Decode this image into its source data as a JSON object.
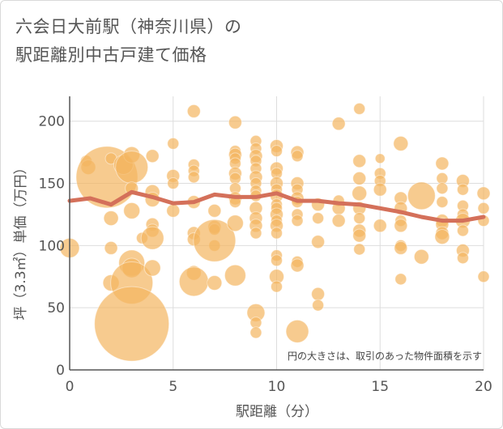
{
  "chart_data": {
    "type": "scatter",
    "title_lines": [
      "六会日大前駅（神奈川県）の",
      "駅距離別中古戸建て価格"
    ],
    "xlabel": "駅距離（分）",
    "ylabel": "坪（3.3㎡）単価（万円）",
    "xlim": [
      0,
      20
    ],
    "ylim": [
      0,
      220
    ],
    "x_ticks": [
      0,
      5,
      10,
      15,
      20
    ],
    "y_ticks": [
      0,
      50,
      100,
      150,
      200
    ],
    "grid": true,
    "annotation": "円の大きさは、取引のあった物件面積を示す",
    "colors": {
      "bubble": "#f3b55f",
      "trend": "#d4705a",
      "grid": "#dddddd",
      "axis": "#555555"
    },
    "bubbles": [
      [
        0,
        98,
        12
      ],
      [
        0.8,
        168,
        7
      ],
      [
        0.9,
        163,
        9
      ],
      [
        1.8,
        155,
        38
      ],
      [
        2,
        170,
        7
      ],
      [
        2,
        98,
        8
      ],
      [
        2,
        122,
        9
      ],
      [
        2,
        70,
        10
      ],
      [
        2.6,
        165,
        12
      ],
      [
        3,
        173,
        10
      ],
      [
        3,
        163,
        20
      ],
      [
        3,
        146,
        8
      ],
      [
        3,
        128,
        10
      ],
      [
        3,
        86,
        16
      ],
      [
        3,
        82,
        12
      ],
      [
        3,
        70,
        26
      ],
      [
        3,
        37,
        46
      ],
      [
        3.5,
        106,
        7
      ],
      [
        4,
        172,
        8
      ],
      [
        4,
        143,
        9
      ],
      [
        4,
        137,
        9
      ],
      [
        4,
        117,
        8
      ],
      [
        4,
        112,
        8
      ],
      [
        4,
        106,
        14
      ],
      [
        4,
        82,
        10
      ],
      [
        5,
        182,
        7
      ],
      [
        5,
        156,
        8
      ],
      [
        5,
        150,
        7
      ],
      [
        5,
        128,
        8
      ],
      [
        6,
        208,
        8
      ],
      [
        6,
        165,
        7
      ],
      [
        6,
        160,
        7
      ],
      [
        6,
        155,
        7
      ],
      [
        6,
        135,
        8
      ],
      [
        6,
        110,
        8
      ],
      [
        6,
        105,
        8
      ],
      [
        6,
        78,
        9
      ],
      [
        6,
        71,
        18
      ],
      [
        7,
        128,
        8
      ],
      [
        7,
        115,
        8
      ],
      [
        7,
        113,
        7
      ],
      [
        7,
        100,
        7
      ],
      [
        7,
        70,
        9
      ],
      [
        7,
        104,
        26
      ],
      [
        8,
        199,
        8
      ],
      [
        8,
        176,
        7
      ],
      [
        8,
        173,
        8
      ],
      [
        8,
        170,
        7
      ],
      [
        8,
        166,
        7
      ],
      [
        8,
        158,
        8
      ],
      [
        8,
        154,
        7
      ],
      [
        8,
        146,
        7
      ],
      [
        8,
        138,
        8
      ],
      [
        8,
        135,
        7
      ],
      [
        8,
        118,
        10
      ],
      [
        8,
        76,
        13
      ],
      [
        9,
        184,
        7
      ],
      [
        9,
        178,
        7
      ],
      [
        9,
        172,
        8
      ],
      [
        9,
        168,
        7
      ],
      [
        9,
        162,
        7
      ],
      [
        9,
        155,
        8
      ],
      [
        9,
        150,
        7
      ],
      [
        9,
        144,
        7
      ],
      [
        9,
        140,
        7
      ],
      [
        9,
        130,
        8
      ],
      [
        9,
        122,
        8
      ],
      [
        9,
        116,
        8
      ],
      [
        9,
        110,
        7
      ],
      [
        9,
        46,
        11
      ],
      [
        9,
        38,
        7
      ],
      [
        9,
        30,
        7
      ],
      [
        10,
        180,
        8
      ],
      [
        10,
        176,
        7
      ],
      [
        10,
        162,
        8
      ],
      [
        10,
        158,
        7
      ],
      [
        10,
        150,
        8
      ],
      [
        10,
        145,
        7
      ],
      [
        10,
        140,
        8
      ],
      [
        10,
        133,
        7
      ],
      [
        10,
        130,
        7
      ],
      [
        10,
        125,
        8
      ],
      [
        10,
        120,
        7
      ],
      [
        10,
        116,
        8
      ],
      [
        10,
        110,
        7
      ],
      [
        10,
        92,
        7
      ],
      [
        10,
        88,
        7
      ],
      [
        10,
        75,
        9
      ],
      [
        10,
        67,
        7
      ],
      [
        11,
        175,
        8
      ],
      [
        11,
        172,
        7
      ],
      [
        11,
        150,
        8
      ],
      [
        11,
        145,
        7
      ],
      [
        11,
        138,
        8
      ],
      [
        11,
        135,
        7
      ],
      [
        11,
        125,
        7
      ],
      [
        11,
        120,
        7
      ],
      [
        11,
        87,
        7
      ],
      [
        11,
        84,
        8
      ],
      [
        11,
        31,
        14
      ],
      [
        12,
        133,
        8
      ],
      [
        12,
        122,
        7
      ],
      [
        12,
        103,
        8
      ],
      [
        12,
        61,
        8
      ],
      [
        12,
        52,
        7
      ],
      [
        13,
        198,
        8
      ],
      [
        13,
        136,
        7
      ],
      [
        13,
        130,
        8
      ],
      [
        13,
        120,
        8
      ],
      [
        14,
        210,
        7
      ],
      [
        14,
        168,
        8
      ],
      [
        14,
        154,
        8
      ],
      [
        14,
        142,
        9
      ],
      [
        14,
        130,
        8
      ],
      [
        14,
        122,
        7
      ],
      [
        14,
        112,
        8
      ],
      [
        14,
        108,
        8
      ],
      [
        14,
        97,
        7
      ],
      [
        15,
        170,
        6
      ],
      [
        15,
        158,
        7
      ],
      [
        15,
        152,
        7
      ],
      [
        15,
        145,
        8
      ],
      [
        15,
        116,
        8
      ],
      [
        16,
        182,
        9
      ],
      [
        16,
        138,
        8
      ],
      [
        16,
        130,
        8
      ],
      [
        16,
        120,
        7
      ],
      [
        16,
        116,
        8
      ],
      [
        16,
        100,
        7
      ],
      [
        16,
        98,
        8
      ],
      [
        16,
        73,
        7
      ],
      [
        17,
        140,
        17
      ],
      [
        17,
        91,
        9
      ],
      [
        18,
        166,
        8
      ],
      [
        18,
        154,
        7
      ],
      [
        18,
        146,
        7
      ],
      [
        18,
        135,
        7
      ],
      [
        18,
        120,
        8
      ],
      [
        18,
        117,
        8
      ],
      [
        18,
        110,
        8
      ],
      [
        18,
        107,
        9
      ],
      [
        19,
        152,
        8
      ],
      [
        19,
        145,
        7
      ],
      [
        19,
        132,
        7
      ],
      [
        19,
        125,
        7
      ],
      [
        19,
        120,
        9
      ],
      [
        19,
        112,
        7
      ],
      [
        19,
        96,
        8
      ],
      [
        19,
        90,
        7
      ],
      [
        20,
        142,
        8
      ],
      [
        20,
        130,
        7
      ],
      [
        20,
        120,
        7
      ],
      [
        20,
        75,
        7
      ]
    ],
    "trend": {
      "x": [
        0,
        1,
        2,
        3,
        4,
        5,
        6,
        7,
        8,
        9,
        10,
        11,
        12,
        13,
        14,
        15,
        16,
        17,
        18,
        19,
        20
      ],
      "y": [
        136,
        138,
        133,
        143,
        139,
        134,
        135,
        141,
        139,
        139,
        142,
        136,
        136,
        134,
        133,
        130,
        127,
        123,
        120,
        120,
        123
      ]
    }
  }
}
